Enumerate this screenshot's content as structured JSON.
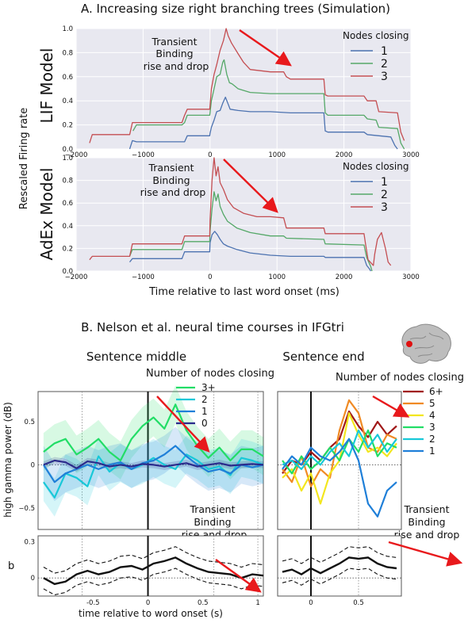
{
  "section_a": {
    "title": "A. Increasing size right branching trees (Simulation)",
    "shared_ylabel": "Rescaled Firing rate",
    "shared_xlabel": "Time relative to last word onset (ms)",
    "annotation": [
      "Transient",
      "Binding",
      "rise and drop"
    ]
  },
  "section_b": {
    "title": "B. Nelson et al. neural time courses in IFGtri",
    "ylabel_top": "high gamma power (dB)",
    "ylabel_bottom": "b",
    "xlabel": "time relative to word onset (s)",
    "annotation": [
      "Transient",
      "Binding",
      "rise and drop"
    ]
  },
  "colors": {
    "blue": "#4c72b0",
    "green": "#55a868",
    "red": "#c44e52",
    "panel_bg": "#e8e8f0",
    "arrow": "#e8191c",
    "b_3plus": "#22dd66",
    "b_2": "#18c8d8",
    "b_1": "#1f7fd8",
    "b_0": "#2b2b8c",
    "b_6plus": "#a01818",
    "b_5": "#f08a24",
    "b_4": "#f3e61e"
  },
  "icon": "brain-icon",
  "chart_data": [
    {
      "type": "line",
      "panel_label": "LIF Model",
      "legend_title": "Nodes closing",
      "xlim": [
        -2000,
        3000
      ],
      "ylim": [
        0,
        1.0
      ],
      "x_ticks": [
        "−2000",
        "−1000",
        "0",
        "1000",
        "2000",
        "3000"
      ],
      "y_ticks": [
        "0.0",
        "0.2",
        "0.4",
        "0.6",
        "0.8",
        "1.0"
      ],
      "grid": true,
      "series": [
        {
          "name": "1",
          "color": "blue",
          "x": [
            -1200,
            -1160,
            -1100,
            -420,
            -380,
            -340,
            -5,
            0,
            20,
            60,
            100,
            150,
            190,
            230,
            280,
            300,
            420,
            600,
            900,
            1200,
            1500,
            1700,
            1720,
            1760,
            2300,
            2350,
            2700,
            2760,
            2800
          ],
          "y": [
            0,
            0.07,
            0.06,
            0.06,
            0.06,
            0.11,
            0.11,
            0.13,
            0.18,
            0.24,
            0.31,
            0.32,
            0.38,
            0.43,
            0.36,
            0.33,
            0.32,
            0.31,
            0.31,
            0.3,
            0.3,
            0.3,
            0.15,
            0.14,
            0.14,
            0.12,
            0.1,
            0.03,
            0
          ]
        },
        {
          "name": "2",
          "color": "green",
          "x": [
            -1150,
            -1100,
            -420,
            -380,
            -340,
            -5,
            0,
            20,
            60,
            100,
            150,
            190,
            210,
            250,
            290,
            330,
            420,
            600,
            900,
            1500,
            1700,
            1720,
            1760,
            2300,
            2350,
            2480,
            2520,
            2800,
            2850,
            2900
          ],
          "y": [
            0.15,
            0.2,
            0.2,
            0.22,
            0.28,
            0.28,
            0.3,
            0.4,
            0.5,
            0.6,
            0.62,
            0.72,
            0.74,
            0.62,
            0.55,
            0.54,
            0.5,
            0.47,
            0.46,
            0.46,
            0.46,
            0.3,
            0.28,
            0.28,
            0.25,
            0.24,
            0.18,
            0.17,
            0.05,
            0
          ]
        },
        {
          "name": "3",
          "color": "red",
          "x": [
            -1800,
            -1760,
            -1200,
            -1160,
            -420,
            -380,
            -340,
            -5,
            0,
            20,
            60,
            100,
            150,
            200,
            240,
            270,
            320,
            420,
            500,
            600,
            900,
            1100,
            1140,
            1200,
            1700,
            1720,
            1760,
            2300,
            2350,
            2480,
            2520,
            2800,
            2850,
            2900
          ],
          "y": [
            0.05,
            0.12,
            0.12,
            0.22,
            0.22,
            0.28,
            0.33,
            0.33,
            0.36,
            0.5,
            0.62,
            0.7,
            0.82,
            0.9,
            1.0,
            0.94,
            0.88,
            0.79,
            0.72,
            0.66,
            0.64,
            0.64,
            0.6,
            0.58,
            0.58,
            0.45,
            0.44,
            0.44,
            0.4,
            0.4,
            0.31,
            0.3,
            0.14,
            0.07
          ]
        }
      ]
    },
    {
      "type": "line",
      "panel_label": "AdEx Model",
      "legend_title": "Nodes closing",
      "xlim": [
        -2000,
        3000
      ],
      "ylim": [
        0,
        1.0
      ],
      "x_ticks": [
        "−2000",
        "−1000",
        "0",
        "1000",
        "2000",
        "3000"
      ],
      "y_ticks": [
        "0.0",
        "0.2",
        "0.4",
        "0.6",
        "0.8",
        "1.0"
      ],
      "grid": true,
      "series": [
        {
          "name": "1",
          "color": "blue",
          "x": [
            -1200,
            -1160,
            -420,
            -380,
            -5,
            0,
            30,
            70,
            110,
            150,
            200,
            260,
            400,
            600,
            900,
            1200,
            1700,
            1720,
            2300,
            2340,
            2380,
            2400
          ],
          "y": [
            0.08,
            0.11,
            0.11,
            0.17,
            0.17,
            0.25,
            0.32,
            0.35,
            0.32,
            0.28,
            0.24,
            0.22,
            0.19,
            0.16,
            0.14,
            0.13,
            0.13,
            0.12,
            0.12,
            0.05,
            0.02,
            0
          ]
        },
        {
          "name": "2",
          "color": "green",
          "x": [
            -1200,
            -1160,
            -420,
            -380,
            -5,
            0,
            30,
            60,
            90,
            120,
            150,
            200,
            260,
            400,
            600,
            900,
            1100,
            1140,
            1700,
            1720,
            2300,
            2340,
            2400,
            2420
          ],
          "y": [
            0.13,
            0.19,
            0.19,
            0.26,
            0.26,
            0.35,
            0.55,
            0.7,
            0.62,
            0.68,
            0.57,
            0.5,
            0.44,
            0.38,
            0.34,
            0.31,
            0.31,
            0.29,
            0.28,
            0.24,
            0.23,
            0.12,
            0.04,
            0
          ]
        },
        {
          "name": "3",
          "color": "red",
          "x": [
            -1800,
            -1760,
            -1200,
            -1160,
            -420,
            -380,
            -5,
            0,
            30,
            60,
            90,
            120,
            150,
            200,
            260,
            350,
            500,
            700,
            900,
            1100,
            1140,
            1700,
            1720,
            2300,
            2320,
            2360,
            2440,
            2460,
            2500,
            2560,
            2620,
            2660,
            2700
          ],
          "y": [
            0.1,
            0.13,
            0.13,
            0.24,
            0.24,
            0.31,
            0.31,
            0.45,
            0.8,
            1.0,
            0.84,
            0.92,
            0.78,
            0.72,
            0.63,
            0.56,
            0.51,
            0.48,
            0.48,
            0.47,
            0.38,
            0.38,
            0.33,
            0.33,
            0.25,
            0.1,
            0.05,
            0.15,
            0.28,
            0.34,
            0.2,
            0.08,
            0.05
          ]
        }
      ]
    },
    {
      "type": "line",
      "panel_label": "Sentence middle",
      "legend_title": "Number of nodes closing",
      "xlim": [
        -1.0,
        1.05
      ],
      "ylim": [
        -0.75,
        0.85
      ],
      "x_ticks": [],
      "y_ticks": [
        "0.5",
        "0",
        "−0.5"
      ],
      "series": [
        {
          "name": "3+",
          "color": "b_3plus",
          "x": [
            -0.95,
            -0.85,
            -0.75,
            -0.65,
            -0.55,
            -0.45,
            -0.35,
            -0.25,
            -0.15,
            -0.05,
            0.05,
            0.15,
            0.25,
            0.35,
            0.45,
            0.55,
            0.65,
            0.75,
            0.85,
            0.95,
            1.05
          ],
          "y": [
            0.15,
            0.25,
            0.3,
            0.12,
            0.2,
            0.3,
            0.15,
            0.05,
            0.3,
            0.45,
            0.55,
            0.42,
            0.7,
            0.4,
            0.22,
            0.08,
            0.2,
            0.05,
            0.18,
            0.18,
            0.1
          ]
        },
        {
          "name": "2",
          "color": "b_2",
          "x": [
            -0.95,
            -0.85,
            -0.75,
            -0.65,
            -0.55,
            -0.45,
            -0.35,
            -0.25,
            -0.15,
            -0.05,
            0.05,
            0.15,
            0.25,
            0.35,
            0.45,
            0.55,
            0.65,
            0.75,
            0.85,
            0.95,
            1.05
          ],
          "y": [
            -0.2,
            -0.38,
            -0.1,
            -0.15,
            -0.25,
            0.1,
            -0.08,
            0.02,
            -0.05,
            0.0,
            0.08,
            0.0,
            -0.05,
            0.12,
            0.05,
            -0.05,
            -0.02,
            -0.12,
            0.08,
            0.05,
            0.0
          ]
        },
        {
          "name": "1",
          "color": "b_1",
          "x": [
            -0.95,
            -0.85,
            -0.75,
            -0.65,
            -0.55,
            -0.45,
            -0.35,
            -0.25,
            -0.15,
            -0.05,
            0.05,
            0.15,
            0.25,
            0.35,
            0.45,
            0.55,
            0.65,
            0.75,
            0.85,
            0.95,
            1.05
          ],
          "y": [
            0.0,
            -0.2,
            -0.1,
            -0.05,
            0.0,
            -0.05,
            0.0,
            0.03,
            -0.05,
            0.02,
            0.05,
            0.12,
            0.22,
            0.1,
            0.0,
            -0.08,
            -0.05,
            -0.1,
            0.0,
            -0.03,
            0.0
          ]
        },
        {
          "name": "0",
          "color": "b_0",
          "x": [
            -0.95,
            -0.85,
            -0.75,
            -0.65,
            -0.55,
            -0.45,
            -0.35,
            -0.25,
            -0.15,
            -0.05,
            0.05,
            0.15,
            0.25,
            0.35,
            0.45,
            0.55,
            0.65,
            0.75,
            0.85,
            0.95,
            1.05
          ],
          "y": [
            0.0,
            0.05,
            0.03,
            -0.04,
            0.04,
            0.02,
            -0.02,
            0.0,
            -0.02,
            0.01,
            0.0,
            -0.02,
            0.0,
            0.02,
            -0.02,
            0.0,
            0.02,
            -0.01,
            0.0,
            0.01,
            0.0
          ]
        }
      ]
    },
    {
      "type": "line",
      "panel_label": "Sentence end",
      "legend_title": "Number of nodes closing",
      "xlim": [
        -0.35,
        0.95
      ],
      "ylim": [
        -0.75,
        0.85
      ],
      "x_ticks": [],
      "y_ticks": [],
      "series": [
        {
          "name": "6+",
          "color": "b_6plus",
          "x": [
            -0.3,
            -0.2,
            -0.1,
            0.0,
            0.1,
            0.2,
            0.3,
            0.4,
            0.5,
            0.6,
            0.7,
            0.8,
            0.9
          ],
          "y": [
            -0.1,
            0.05,
            0.0,
            0.15,
            0.05,
            0.2,
            0.3,
            0.62,
            0.45,
            0.32,
            0.5,
            0.35,
            0.45
          ]
        },
        {
          "name": "5",
          "color": "b_5",
          "x": [
            -0.3,
            -0.2,
            -0.1,
            0.0,
            0.1,
            0.2,
            0.3,
            0.4,
            0.5,
            0.6,
            0.7,
            0.8,
            0.9
          ],
          "y": [
            -0.05,
            -0.2,
            0.1,
            -0.25,
            -0.05,
            -0.15,
            0.4,
            0.75,
            0.6,
            0.2,
            0.15,
            0.35,
            0.3
          ]
        },
        {
          "name": "4",
          "color": "b_4",
          "x": [
            -0.3,
            -0.2,
            -0.1,
            0.0,
            0.1,
            0.2,
            0.3,
            0.4,
            0.5,
            0.6,
            0.7,
            0.8,
            0.9
          ],
          "y": [
            -0.15,
            -0.05,
            -0.3,
            -0.1,
            -0.45,
            -0.1,
            0.05,
            0.6,
            0.35,
            0.15,
            0.2,
            0.1,
            0.25
          ]
        },
        {
          "name": "3",
          "color": "b_3plus",
          "x": [
            -0.3,
            -0.2,
            -0.1,
            0.0,
            0.1,
            0.2,
            0.3,
            0.4,
            0.5,
            0.6,
            0.7,
            0.8,
            0.9
          ],
          "y": [
            0.05,
            -0.1,
            0.1,
            -0.05,
            0.05,
            0.2,
            0.05,
            0.3,
            0.15,
            0.4,
            0.1,
            0.25,
            0.2
          ]
        },
        {
          "name": "2",
          "color": "b_2",
          "x": [
            -0.3,
            -0.2,
            -0.1,
            0.0,
            0.1,
            0.2,
            0.3,
            0.4,
            0.5,
            0.6,
            0.7,
            0.8,
            0.9
          ],
          "y": [
            0.0,
            0.05,
            -0.05,
            0.1,
            0.0,
            0.15,
            0.25,
            0.1,
            0.4,
            0.2,
            0.35,
            0.15,
            0.3
          ]
        },
        {
          "name": "1",
          "color": "b_1",
          "x": [
            -0.3,
            -0.2,
            -0.1,
            0.0,
            0.1,
            0.2,
            0.3,
            0.4,
            0.5,
            0.6,
            0.7,
            0.8,
            0.9
          ],
          "y": [
            -0.05,
            0.1,
            0.0,
            0.2,
            0.1,
            0.05,
            0.15,
            0.3,
            0.05,
            -0.45,
            -0.6,
            -0.3,
            -0.2
          ]
        }
      ]
    },
    {
      "type": "line",
      "panel_label": "b sentence middle",
      "xlim": [
        -1.0,
        1.05
      ],
      "ylim": [
        -0.15,
        0.35
      ],
      "x_ticks": [
        "-0.5",
        "0",
        "0.5",
        "1"
      ],
      "y_ticks": [
        "0.3",
        "0"
      ],
      "series": [
        {
          "color": "black",
          "x": [
            -0.95,
            -0.85,
            -0.75,
            -0.65,
            -0.55,
            -0.45,
            -0.35,
            -0.25,
            -0.15,
            -0.05,
            0.05,
            0.15,
            0.25,
            0.35,
            0.45,
            0.55,
            0.65,
            0.75,
            0.85,
            0.95,
            1.05
          ],
          "y": [
            0.0,
            -0.05,
            -0.03,
            0.03,
            0.06,
            0.03,
            0.05,
            0.09,
            0.1,
            0.07,
            0.12,
            0.14,
            0.17,
            0.12,
            0.08,
            0.05,
            0.04,
            0.03,
            0.0,
            0.03,
            0.02
          ]
        }
      ]
    },
    {
      "type": "line",
      "panel_label": "b sentence end",
      "xlim": [
        -0.35,
        0.95
      ],
      "ylim": [
        -0.15,
        0.35
      ],
      "x_ticks": [
        "0",
        "0.5"
      ],
      "y_ticks": [],
      "series": [
        {
          "color": "black",
          "x": [
            -0.3,
            -0.2,
            -0.1,
            0.0,
            0.1,
            0.2,
            0.3,
            0.4,
            0.5,
            0.6,
            0.7,
            0.8,
            0.9
          ],
          "y": [
            0.05,
            0.07,
            0.03,
            0.08,
            0.04,
            0.08,
            0.12,
            0.17,
            0.16,
            0.17,
            0.12,
            0.09,
            0.08
          ]
        }
      ]
    }
  ]
}
